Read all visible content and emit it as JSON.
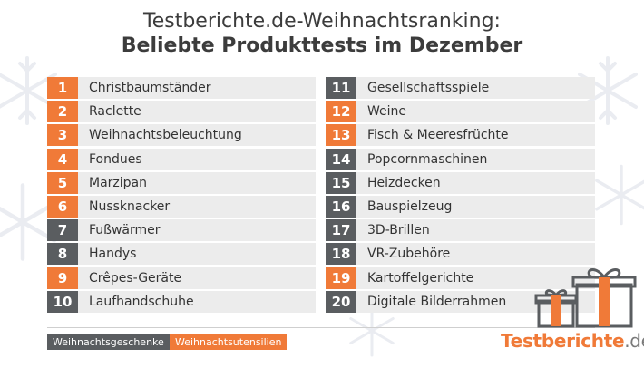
{
  "title": {
    "line1": "Testberichte.de-Weihnachtsranking:",
    "line2": "Beliebte Produkttests im Dezember"
  },
  "colors": {
    "orange": "#f07a38",
    "gray": "#5a5d60",
    "row_bg": "#ececec"
  },
  "ranking_left": [
    {
      "rank": "1",
      "label": "Christbaumständer",
      "category": "orange"
    },
    {
      "rank": "2",
      "label": "Raclette",
      "category": "orange"
    },
    {
      "rank": "3",
      "label": "Weihnachtsbeleuchtung",
      "category": "orange"
    },
    {
      "rank": "4",
      "label": "Fondues",
      "category": "orange"
    },
    {
      "rank": "5",
      "label": "Marzipan",
      "category": "orange"
    },
    {
      "rank": "6",
      "label": "Nussknacker",
      "category": "orange"
    },
    {
      "rank": "7",
      "label": "Fußwärmer",
      "category": "gray"
    },
    {
      "rank": "8",
      "label": "Handys",
      "category": "gray"
    },
    {
      "rank": "9",
      "label": "Crêpes-Geräte",
      "category": "orange"
    },
    {
      "rank": "10",
      "label": "Laufhandschuhe",
      "category": "gray"
    }
  ],
  "ranking_right": [
    {
      "rank": "11",
      "label": "Gesellschaftsspiele",
      "category": "gray"
    },
    {
      "rank": "12",
      "label": "Weine",
      "category": "orange"
    },
    {
      "rank": "13",
      "label": "Fisch & Meeresfrüchte",
      "category": "orange"
    },
    {
      "rank": "14",
      "label": "Popcornmaschinen",
      "category": "gray"
    },
    {
      "rank": "15",
      "label": "Heizdecken",
      "category": "gray"
    },
    {
      "rank": "16",
      "label": "Bauspielzeug",
      "category": "gray"
    },
    {
      "rank": "17",
      "label": "3D-Brillen",
      "category": "gray"
    },
    {
      "rank": "18",
      "label": "VR-Zubehöre",
      "category": "gray"
    },
    {
      "rank": "19",
      "label": "Kartoffelgerichte",
      "category": "orange"
    },
    {
      "rank": "20",
      "label": "Digitale Bilderrahmen",
      "category": "gray"
    }
  ],
  "legend": {
    "gray_label": "Weihnachtsgeschenke",
    "orange_label": "Weihnachtsutensilien"
  },
  "brand": {
    "name": "Testberichte",
    "tld": ".de"
  },
  "icons": [
    "snowflake-icon",
    "gift-boxes-icon"
  ]
}
